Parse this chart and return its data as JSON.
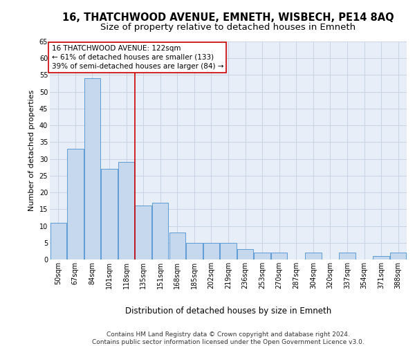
{
  "title_line1": "16, THATCHWOOD AVENUE, EMNETH, WISBECH, PE14 8AQ",
  "title_line2": "Size of property relative to detached houses in Emneth",
  "xlabel": "Distribution of detached houses by size in Emneth",
  "ylabel": "Number of detached properties",
  "footnote1": "Contains HM Land Registry data © Crown copyright and database right 2024.",
  "footnote2": "Contains public sector information licensed under the Open Government Licence v3.0.",
  "categories": [
    "50sqm",
    "67sqm",
    "84sqm",
    "101sqm",
    "118sqm",
    "135sqm",
    "151sqm",
    "168sqm",
    "185sqm",
    "202sqm",
    "219sqm",
    "236sqm",
    "253sqm",
    "270sqm",
    "287sqm",
    "304sqm",
    "320sqm",
    "337sqm",
    "354sqm",
    "371sqm",
    "388sqm"
  ],
  "values": [
    11,
    33,
    54,
    27,
    29,
    16,
    17,
    8,
    5,
    5,
    5,
    3,
    2,
    2,
    0,
    2,
    0,
    2,
    0,
    1,
    2
  ],
  "bar_color": "#c5d8ed",
  "bar_edge_color": "#5b9bd5",
  "bar_edge_width": 0.7,
  "vline_x": 4.5,
  "vline_color": "#cc0000",
  "annotation_line1": "16 THATCHWOOD AVENUE: 122sqm",
  "annotation_line2": "← 61% of detached houses are smaller (133)",
  "annotation_line3": "39% of semi-detached houses are larger (84) →",
  "annotation_box_facecolor": "#ffffff",
  "annotation_box_edgecolor": "#cc0000",
  "ylim_max": 65,
  "yticks": [
    0,
    5,
    10,
    15,
    20,
    25,
    30,
    35,
    40,
    45,
    50,
    55,
    60,
    65
  ],
  "grid_color": "#c8d4e3",
  "plot_bg_color": "#e8eef8",
  "title1_fontsize": 10.5,
  "title2_fontsize": 9.5,
  "xlabel_fontsize": 8.5,
  "ylabel_fontsize": 8,
  "tick_fontsize": 7,
  "annotation_fontsize": 7.5,
  "footnote_fontsize": 6.5
}
